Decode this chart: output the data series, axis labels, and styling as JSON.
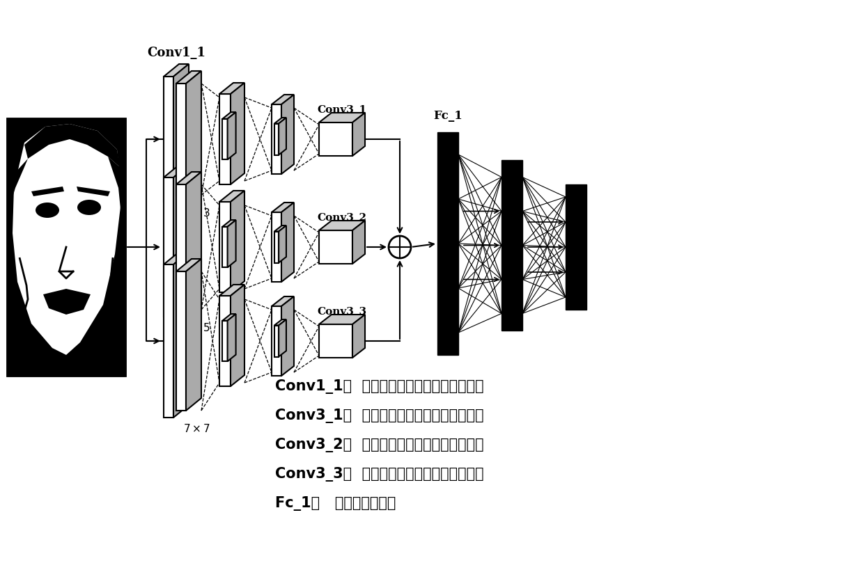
{
  "legend_lines": [
    "Conv1_1：  第一个网络分支的第一个卷积层",
    "Conv3_1：  第一个网络分支的第三个卷积层",
    "Conv3_2：  第二个网络分支的第三个卷积层",
    "Conv3_3：  第三个网络分支的第三个卷积层",
    "Fc_1：   第一个全连接层"
  ],
  "bg_color": "#ffffff"
}
